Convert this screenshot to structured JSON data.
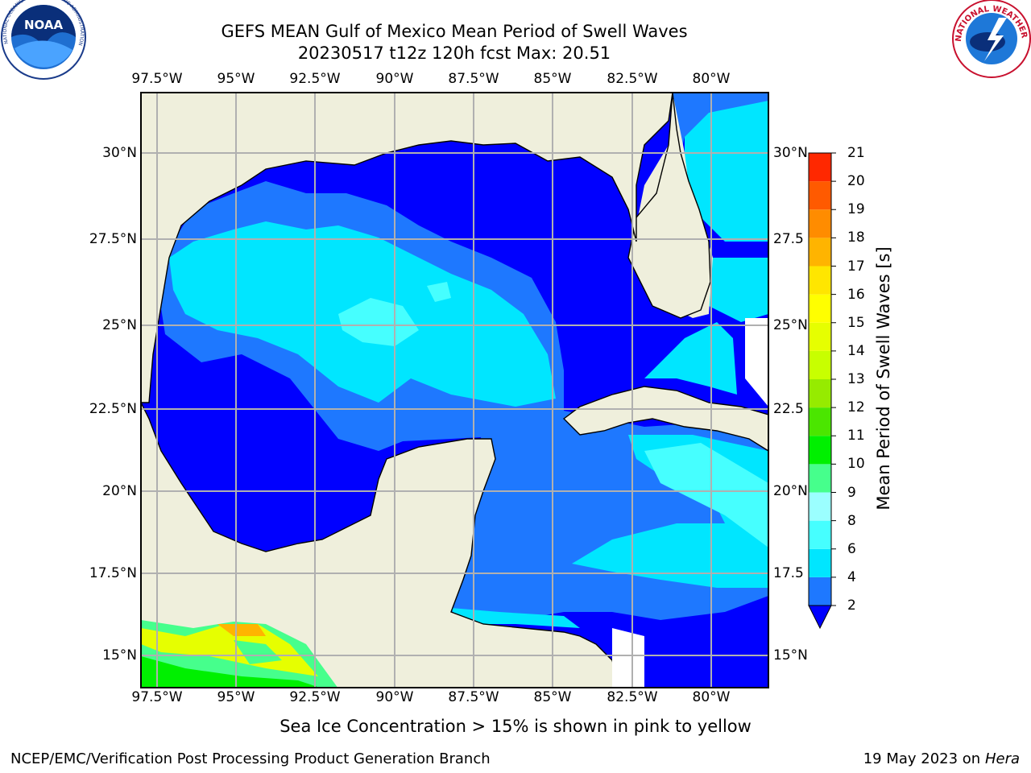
{
  "title": {
    "line1": "GEFS MEAN Gulf of Mexico Mean Period of Swell Waves",
    "line2": "20230517 t12z 120h fcst   Max: 20.51"
  },
  "logos": {
    "noaa": {
      "text": "NOAA",
      "ring_text": "NATIONAL OCEANIC AND ATMOSPHERIC ADMINISTRATION · U.S. DEPARTMENT OF COMMERCE"
    },
    "nws": {
      "ring_text": "NATIONAL WEATHER SERVICE"
    }
  },
  "axes": {
    "lon_labels": [
      "97.5°W",
      "95°W",
      "92.5°W",
      "90°W",
      "87.5°W",
      "85°W",
      "82.5°W",
      "80°W"
    ],
    "lat_labels": [
      "30°N",
      "27.5°N",
      "25°N",
      "22.5°N",
      "20°N",
      "17.5°N",
      "15°N"
    ],
    "lat_labels_right": [
      "30°N",
      "27.5",
      "25°N",
      "22.5",
      "20°N",
      "17.5",
      "15°N"
    ]
  },
  "colorbar": {
    "label": "Mean Period of Swell Waves [s]",
    "ticks": [
      "2",
      "4",
      "6",
      "8",
      "9",
      "10",
      "11",
      "12",
      "13",
      "14",
      "15",
      "16",
      "17",
      "18",
      "19",
      "20",
      "21"
    ],
    "colors": [
      "#1e78ff",
      "#00e6ff",
      "#46ffff",
      "#9bffff",
      "#46ff8c",
      "#00f000",
      "#4be600",
      "#96eb00",
      "#c8ff00",
      "#e6ff00",
      "#ffff00",
      "#ffe600",
      "#ffb400",
      "#ff8c00",
      "#ff5a00",
      "#ff2800",
      "#f00000"
    ],
    "under_color": "#0000ff"
  },
  "map_colors": {
    "land": "#efefdc",
    "level_2": "#0000ff",
    "level_4": "#1e78ff",
    "level_6": "#00e6ff",
    "level_8": "#46ffff"
  },
  "footer": {
    "seaice_note": "Sea Ice Concentration > 15% is shown in pink to yellow",
    "credit": "NCEP/EMC/Verification Post Processing Product Generation Branch",
    "date": "19 May 2023 on",
    "machine": "Hera"
  }
}
